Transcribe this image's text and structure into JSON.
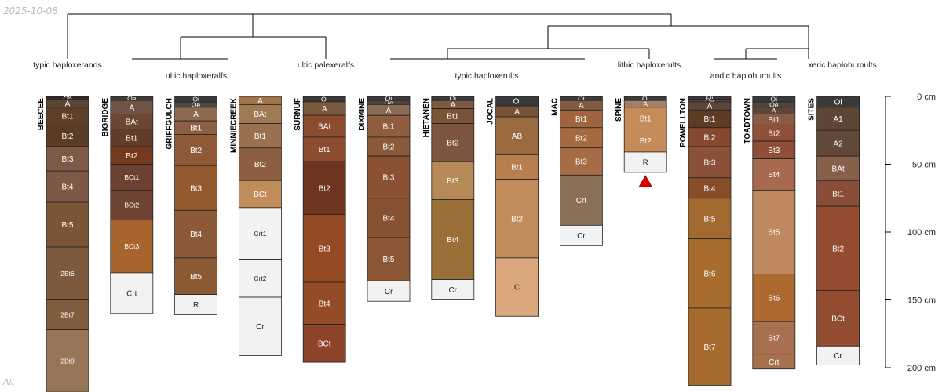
{
  "header": {
    "date": "2025-10-08",
    "corner_label": "All"
  },
  "depth_axis": {
    "unit": "cm",
    "ticks": [
      0,
      50,
      100,
      150,
      200
    ]
  },
  "groups": [
    {
      "label": "typic haploxerands",
      "profiles": [
        "BEECEE"
      ]
    },
    {
      "label": "ultic haploxeralfs",
      "profiles": [
        "BIGRIDGE",
        "GRIFFGULCH"
      ]
    },
    {
      "label": "ultic palexeralfs",
      "profiles": [
        "MINNIECREEK",
        "SURNUF"
      ]
    },
    {
      "label": "typic haploxerults",
      "profiles": [
        "DIXMINE",
        "HIETANEN",
        "JOCAL",
        "MAC"
      ]
    },
    {
      "label": "lithic haploxerults",
      "profiles": [
        "SPINE"
      ]
    },
    {
      "label": "andic haplohumults",
      "profiles": [
        "POWELLTON",
        "TOADTOWN"
      ]
    },
    {
      "label": "xeric haplohumults",
      "profiles": [
        "SITES"
      ]
    }
  ],
  "profiles": [
    {
      "name": "BEECEE",
      "horizons": [
        {
          "name": "Oi",
          "top": 0,
          "bottom": 1,
          "color": "#2e2e2e"
        },
        {
          "name": "Oe",
          "top": 1,
          "bottom": 2,
          "color": "#3b3530"
        },
        {
          "name": "A",
          "top": 2,
          "bottom": 8,
          "color": "#5a4632"
        },
        {
          "name": "Bt1",
          "top": 8,
          "bottom": 21,
          "color": "#5e4028"
        },
        {
          "name": "Bt2",
          "top": 21,
          "bottom": 37,
          "color": "#5a3c24"
        },
        {
          "name": "Bt3",
          "top": 37,
          "bottom": 55,
          "color": "#7d5a48"
        },
        {
          "name": "Bt4",
          "top": 55,
          "bottom": 78,
          "color": "#7d5846"
        },
        {
          "name": "Bt5",
          "top": 78,
          "bottom": 111,
          "color": "#7b5636"
        },
        {
          "name": "2Bt6",
          "top": 111,
          "bottom": 150,
          "color": "#7d5a3e"
        },
        {
          "name": "2Bt7",
          "top": 150,
          "bottom": 172,
          "color": "#805c3f"
        },
        {
          "name": "2Bt8",
          "top": 172,
          "bottom": 218,
          "color": "#977558"
        }
      ]
    },
    {
      "name": "BIGRIDGE",
      "horizons": [
        {
          "name": "Oe",
          "top": 0,
          "bottom": 3,
          "color": "#3f3a36"
        },
        {
          "name": "A",
          "top": 3,
          "bottom": 13,
          "color": "#6e5444"
        },
        {
          "name": "BAt",
          "top": 13,
          "bottom": 24,
          "color": "#6b4630"
        },
        {
          "name": "Bt1",
          "top": 24,
          "bottom": 37,
          "color": "#623c2a"
        },
        {
          "name": "Bt2",
          "top": 37,
          "bottom": 50,
          "color": "#743a1e"
        },
        {
          "name": "BCt1",
          "top": 50,
          "bottom": 69,
          "color": "#6e4032"
        },
        {
          "name": "BCt2",
          "top": 69,
          "bottom": 91,
          "color": "#704434"
        },
        {
          "name": "BCt3",
          "top": 91,
          "bottom": 130,
          "color": "#a8652e"
        },
        {
          "name": "Crt",
          "top": 130,
          "bottom": 160,
          "color": "#f2f2f2"
        }
      ]
    },
    {
      "name": "GRIFFGULCH",
      "horizons": [
        {
          "name": "Oi",
          "top": 0,
          "bottom": 4,
          "color": "#3a3a3a"
        },
        {
          "name": "Oe",
          "top": 4,
          "bottom": 8,
          "color": "#4c4541"
        },
        {
          "name": "A",
          "top": 8,
          "bottom": 18,
          "color": "#8f6a52"
        },
        {
          "name": "Bt1",
          "top": 18,
          "bottom": 28,
          "color": "#8c5e44"
        },
        {
          "name": "Bt2",
          "top": 28,
          "bottom": 51,
          "color": "#8f5b36"
        },
        {
          "name": "Bt3",
          "top": 51,
          "bottom": 84,
          "color": "#935a30"
        },
        {
          "name": "Bt4",
          "top": 84,
          "bottom": 119,
          "color": "#8c5a36"
        },
        {
          "name": "Bt5",
          "top": 119,
          "bottom": 146,
          "color": "#8b5a32"
        },
        {
          "name": "R",
          "top": 146,
          "bottom": 161,
          "color": "#f2f2f2"
        }
      ]
    },
    {
      "name": "MINNIECREEK",
      "horizons": [
        {
          "name": "A",
          "top": 0,
          "bottom": 6,
          "color": "#a2764a"
        },
        {
          "name": "BAt",
          "top": 6,
          "bottom": 20,
          "color": "#a07a52"
        },
        {
          "name": "Bt1",
          "top": 20,
          "bottom": 38,
          "color": "#9a7050"
        },
        {
          "name": "Bt2",
          "top": 38,
          "bottom": 62,
          "color": "#8c5e42"
        },
        {
          "name": "BCt",
          "top": 62,
          "bottom": 82,
          "color": "#c08c5a"
        },
        {
          "name": "Crt1",
          "top": 82,
          "bottom": 120,
          "color": "#f2f2f2"
        },
        {
          "name": "Crt2",
          "top": 120,
          "bottom": 148,
          "color": "#f2f2f2"
        },
        {
          "name": "Cr",
          "top": 148,
          "bottom": 191,
          "color": "#f2f2f2"
        }
      ]
    },
    {
      "name": "SURNUF",
      "horizons": [
        {
          "name": "Oi",
          "top": 0,
          "bottom": 4,
          "color": "#3a3a3a"
        },
        {
          "name": "A",
          "top": 4,
          "bottom": 14,
          "color": "#7a5a3c"
        },
        {
          "name": "BAt",
          "top": 14,
          "bottom": 30,
          "color": "#8c4c2e"
        },
        {
          "name": "Bt1",
          "top": 30,
          "bottom": 48,
          "color": "#8e4c30"
        },
        {
          "name": "Bt2",
          "top": 48,
          "bottom": 87,
          "color": "#6e3620"
        },
        {
          "name": "Bt3",
          "top": 87,
          "bottom": 137,
          "color": "#944a24"
        },
        {
          "name": "Bt4",
          "top": 137,
          "bottom": 168,
          "color": "#944c28"
        },
        {
          "name": "BCt",
          "top": 168,
          "bottom": 196,
          "color": "#8e4428"
        }
      ]
    },
    {
      "name": "DIXMINE",
      "horizons": [
        {
          "name": "Oi",
          "top": 0,
          "bottom": 3,
          "color": "#3a3a3a"
        },
        {
          "name": "Oe",
          "top": 3,
          "bottom": 6,
          "color": "#4c4541"
        },
        {
          "name": "A",
          "top": 6,
          "bottom": 14,
          "color": "#8a6a52"
        },
        {
          "name": "Bt1",
          "top": 14,
          "bottom": 30,
          "color": "#8e5e3e"
        },
        {
          "name": "Bt2",
          "top": 30,
          "bottom": 44,
          "color": "#8b5a3a"
        },
        {
          "name": "Bt3",
          "top": 44,
          "bottom": 75,
          "color": "#8a5232"
        },
        {
          "name": "Bt4",
          "top": 75,
          "bottom": 104,
          "color": "#86522f"
        },
        {
          "name": "Bt5",
          "top": 104,
          "bottom": 136,
          "color": "#8a5634"
        },
        {
          "name": "Cr",
          "top": 136,
          "bottom": 151,
          "color": "#f2f2f2"
        }
      ]
    },
    {
      "name": "HIETANEN",
      "horizons": [
        {
          "name": "Oi",
          "top": 0,
          "bottom": 3,
          "color": "#3a3a3a"
        },
        {
          "name": "A",
          "top": 3,
          "bottom": 9,
          "color": "#7c5a44"
        },
        {
          "name": "Bt1",
          "top": 9,
          "bottom": 20,
          "color": "#7a5236"
        },
        {
          "name": "Bt2",
          "top": 20,
          "bottom": 48,
          "color": "#7e5640"
        },
        {
          "name": "Bt3",
          "top": 48,
          "bottom": 76,
          "color": "#b58a56"
        },
        {
          "name": "Bt4",
          "top": 76,
          "bottom": 135,
          "color": "#9a7038"
        },
        {
          "name": "Cr",
          "top": 135,
          "bottom": 150,
          "color": "#f2f2f2"
        }
      ]
    },
    {
      "name": "JOCAL",
      "horizons": [
        {
          "name": "Oi",
          "top": 0,
          "bottom": 7,
          "color": "#3a3a3a"
        },
        {
          "name": "A",
          "top": 7,
          "bottom": 15,
          "color": "#7a5238"
        },
        {
          "name": "AB",
          "top": 15,
          "bottom": 43,
          "color": "#9a6a40"
        },
        {
          "name": "Bt1",
          "top": 43,
          "bottom": 61,
          "color": "#b77e50"
        },
        {
          "name": "Bt2",
          "top": 61,
          "bottom": 119,
          "color": "#c08c5c"
        },
        {
          "name": "C",
          "top": 119,
          "bottom": 162,
          "color": "#dba77c"
        }
      ]
    },
    {
      "name": "MAC",
      "horizons": [
        {
          "name": "Oi",
          "top": 0,
          "bottom": 3,
          "color": "#3a3a3a"
        },
        {
          "name": "A",
          "top": 3,
          "bottom": 10,
          "color": "#805a42"
        },
        {
          "name": "Bt1",
          "top": 10,
          "bottom": 23,
          "color": "#a0653e"
        },
        {
          "name": "Bt2",
          "top": 23,
          "bottom": 38,
          "color": "#a66a42"
        },
        {
          "name": "Bt3",
          "top": 38,
          "bottom": 58,
          "color": "#a66c46"
        },
        {
          "name": "Crt",
          "top": 58,
          "bottom": 95,
          "color": "#8a7058"
        },
        {
          "name": "Cr",
          "top": 95,
          "bottom": 110,
          "color": "#f2f2f2"
        }
      ]
    },
    {
      "name": "SPINE",
      "horizons": [
        {
          "name": "Oi",
          "top": 0,
          "bottom": 3,
          "color": "#3a3a3a"
        },
        {
          "name": "A",
          "top": 3,
          "bottom": 8,
          "color": "#a07e6a"
        },
        {
          "name": "Bt1",
          "top": 8,
          "bottom": 24,
          "color": "#c68c58"
        },
        {
          "name": "Bt2",
          "top": 24,
          "bottom": 41,
          "color": "#c48a58"
        },
        {
          "name": "R",
          "top": 41,
          "bottom": 56,
          "color": "#f2f2f2"
        }
      ]
    },
    {
      "name": "POWELLTON",
      "horizons": [
        {
          "name": "Oi",
          "top": 0,
          "bottom": 2,
          "color": "#3a3a3a"
        },
        {
          "name": "Oe",
          "top": 2,
          "bottom": 4,
          "color": "#4c4541"
        },
        {
          "name": "A",
          "top": 4,
          "bottom": 10,
          "color": "#5e4636"
        },
        {
          "name": "Bt1",
          "top": 10,
          "bottom": 23,
          "color": "#5e3c24"
        },
        {
          "name": "Bt2",
          "top": 23,
          "bottom": 37,
          "color": "#86482e"
        },
        {
          "name": "Bt3",
          "top": 37,
          "bottom": 60,
          "color": "#8a5038"
        },
        {
          "name": "Bt4",
          "top": 60,
          "bottom": 75,
          "color": "#874c28"
        },
        {
          "name": "Bt5",
          "top": 75,
          "bottom": 105,
          "color": "#a26a30"
        },
        {
          "name": "Bt6",
          "top": 105,
          "bottom": 156,
          "color": "#a86c2e"
        },
        {
          "name": "Bt7",
          "top": 156,
          "bottom": 213,
          "color": "#a56a2e"
        }
      ]
    },
    {
      "name": "TOADTOWN",
      "horizons": [
        {
          "name": "Oi",
          "top": 0,
          "bottom": 4,
          "color": "#3a3a3a"
        },
        {
          "name": "Oe",
          "top": 4,
          "bottom": 8,
          "color": "#4c4541"
        },
        {
          "name": "A",
          "top": 8,
          "bottom": 13,
          "color": "#604636"
        },
        {
          "name": "Bt1",
          "top": 13,
          "bottom": 21,
          "color": "#8a5c44"
        },
        {
          "name": "Bt2",
          "top": 21,
          "bottom": 33,
          "color": "#8e5038"
        },
        {
          "name": "Bt3",
          "top": 33,
          "bottom": 46,
          "color": "#8e4e38"
        },
        {
          "name": "Bt4",
          "top": 46,
          "bottom": 69,
          "color": "#a86a4e"
        },
        {
          "name": "Bt5",
          "top": 69,
          "bottom": 131,
          "color": "#c08860"
        },
        {
          "name": "Bt6",
          "top": 131,
          "bottom": 166,
          "color": "#ac6a30"
        },
        {
          "name": "Bt7",
          "top": 166,
          "bottom": 190,
          "color": "#a87050"
        },
        {
          "name": "Crt",
          "top": 190,
          "bottom": 201,
          "color": "#a8704c"
        }
      ]
    },
    {
      "name": "SITES",
      "horizons": [
        {
          "name": "Oi",
          "top": 0,
          "bottom": 8,
          "color": "#3a3a3a"
        },
        {
          "name": "A1",
          "top": 8,
          "bottom": 25,
          "color": "#5e4636"
        },
        {
          "name": "A2",
          "top": 25,
          "bottom": 44,
          "color": "#624838"
        },
        {
          "name": "BAt",
          "top": 44,
          "bottom": 62,
          "color": "#86604a"
        },
        {
          "name": "Bt1",
          "top": 62,
          "bottom": 81,
          "color": "#8a4e38"
        },
        {
          "name": "Bt2",
          "top": 81,
          "bottom": 143,
          "color": "#934c30"
        },
        {
          "name": "BCt",
          "top": 143,
          "bottom": 184,
          "color": "#924c30"
        },
        {
          "name": "Cr",
          "top": 184,
          "bottom": 198,
          "color": "#f2f2f2"
        }
      ]
    }
  ],
  "colors": {
    "label_light": "#ffffff",
    "label_dark": "#222222",
    "bedrock_marker": "#e00000",
    "dendrogram": "#000000"
  }
}
